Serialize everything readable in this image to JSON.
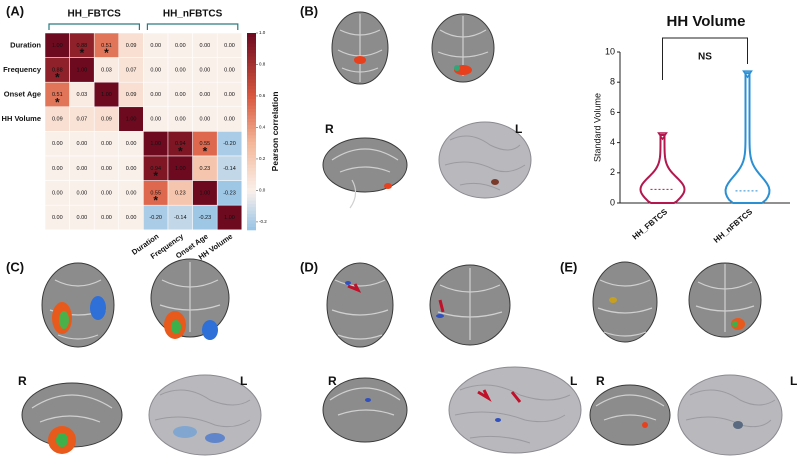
{
  "panel_labels": [
    "(A)",
    "(B)",
    "(C)",
    "(D)",
    "(E)"
  ],
  "side_labels": {
    "right": "R",
    "left": "L"
  },
  "chart_data": [
    {
      "type": "heatmap",
      "group_labels": [
        "HH_FBTCS",
        "HH_nFBTCS"
      ],
      "row_labels": [
        "Duration",
        "Frequency",
        "Onset Age",
        "HH Volume",
        null,
        null,
        null,
        null
      ],
      "column_labels": [
        null,
        null,
        null,
        null,
        "Duration",
        "Frequency",
        "Onset Age",
        "HH Volume"
      ],
      "values": [
        [
          1.0,
          0.88,
          0.51,
          0.09,
          0.0,
          0.0,
          0.0,
          0.0
        ],
        [
          0.88,
          1.0,
          0.03,
          0.07,
          0.0,
          0.0,
          0.0,
          0.0
        ],
        [
          0.51,
          0.03,
          1.0,
          0.09,
          0.0,
          0.0,
          0.0,
          0.0
        ],
        [
          0.09,
          0.07,
          0.09,
          1.0,
          0.0,
          0.0,
          0.0,
          0.0
        ],
        [
          0.0,
          0.0,
          0.0,
          0.0,
          1.0,
          0.94,
          0.55,
          -0.2
        ],
        [
          0.0,
          0.0,
          0.0,
          0.0,
          0.94,
          1.0,
          0.23,
          -0.14
        ],
        [
          0.0,
          0.0,
          0.0,
          0.0,
          0.55,
          0.23,
          1.0,
          -0.23
        ],
        [
          0.0,
          0.0,
          0.0,
          0.0,
          -0.2,
          -0.14,
          -0.23,
          1.0
        ]
      ],
      "value_labels": [
        [
          "1.00",
          "0.88",
          "0.51",
          "0.09",
          "0.00",
          "0.00",
          "0.00",
          "0.00"
        ],
        [
          "0.88",
          "1.00",
          "0.03",
          "0.07",
          "0.00",
          "0.00",
          "0.00",
          "0.00"
        ],
        [
          "0.51",
          "0.03",
          "1.00",
          "0.09",
          "0.00",
          "0.00",
          "0.00",
          "0.00"
        ],
        [
          "0.09",
          "0.07",
          "0.09",
          "1.00",
          "0.00",
          "0.00",
          "0.00",
          "0.00"
        ],
        [
          "0.00",
          "0.00",
          "0.00",
          "0.00",
          "1.00",
          "0.94",
          "0.55",
          "-0.20"
        ],
        [
          "0.00",
          "0.00",
          "0.00",
          "0.00",
          "0.94",
          "1.00",
          "0.23",
          "-0.14"
        ],
        [
          "0.00",
          "0.00",
          "0.00",
          "0.00",
          "0.55",
          "0.23",
          "1.00",
          "-0.23"
        ],
        [
          "0.00",
          "0.00",
          "0.00",
          "0.00",
          "-0.20",
          "-0.14",
          "-0.23",
          "1.00"
        ]
      ],
      "significance": [
        [
          null,
          "*",
          "*",
          null,
          null,
          null,
          null,
          null
        ],
        [
          "*",
          null,
          null,
          null,
          null,
          null,
          null,
          null
        ],
        [
          "*",
          null,
          null,
          null,
          null,
          null,
          null,
          null
        ],
        [
          null,
          null,
          null,
          null,
          null,
          null,
          null,
          null
        ],
        [
          null,
          null,
          null,
          null,
          null,
          "*",
          "*",
          null
        ],
        [
          null,
          null,
          null,
          null,
          "*",
          null,
          null,
          null
        ],
        [
          null,
          null,
          null,
          null,
          "*",
          null,
          null,
          null
        ],
        [
          null,
          null,
          null,
          null,
          null,
          null,
          null,
          null
        ]
      ],
      "colorbar_label": "Pearson correlation",
      "clim": [
        -0.25,
        1.0
      ],
      "cticks": [
        {
          "value": 1,
          "label": "1.0"
        },
        0.8,
        0.6,
        0.4,
        0.2,
        {
          "value": 0,
          "label": "0.0"
        },
        -0.2
      ]
    },
    {
      "type": "violin",
      "title": "HH Volume",
      "ylabel": "Standard Volume",
      "categories": [
        "HH_FBTCS",
        "HH_nFBTCS"
      ],
      "colors": [
        "#b3174e",
        "#2b8fd4"
      ],
      "min": [
        0,
        0
      ],
      "median": [
        0.9,
        0.8
      ],
      "max": [
        4.5,
        8.6
      ],
      "ylim": [
        0,
        10
      ],
      "yticks": [
        0,
        2,
        4,
        6,
        8,
        10
      ],
      "annotation": "NS"
    }
  ]
}
